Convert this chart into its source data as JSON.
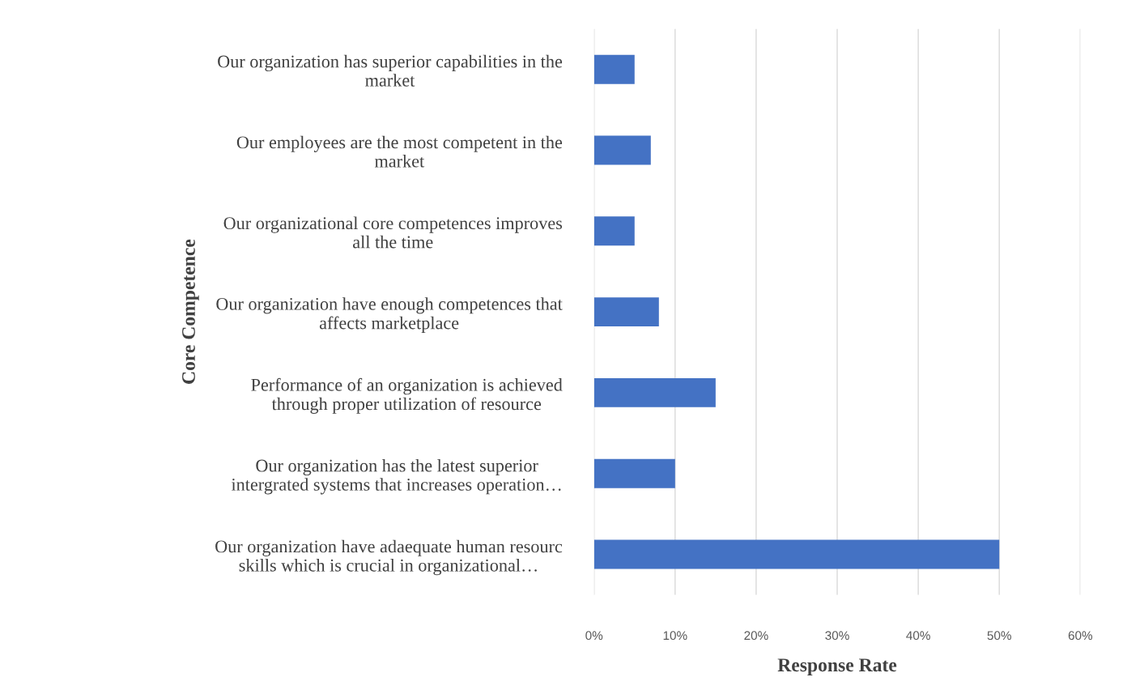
{
  "chart_data": {
    "type": "bar",
    "orientation": "horizontal",
    "xlabel": "Response Rate",
    "ylabel": "Core Competence",
    "categories": [
      "Our organization has superior capabilities in the\nmarket",
      "Our employees are the most competent in the\nmarket",
      "Our organizational core competences improves\nall the time",
      "Our organization have enough competences that\naffects marketplace",
      "Performance of an organization is achieved\nthrough proper utilization of resource",
      "Our organization has the latest superior\nintergrated systems that increases operation…",
      "Our organization have adaequate human resourc\nskills which is crucial in organizational…"
    ],
    "values": [
      5,
      7,
      5,
      8,
      15,
      10,
      50
    ],
    "color": "#4472c4",
    "xlim": [
      0,
      60
    ],
    "xticks": [
      {
        "value": 0,
        "label": "0%"
      },
      {
        "value": 10,
        "label": "10%"
      },
      {
        "value": 20,
        "label": "20%"
      },
      {
        "value": 30,
        "label": "30%"
      },
      {
        "value": 40,
        "label": "40%"
      },
      {
        "value": 50,
        "label": "50%"
      },
      {
        "value": 60,
        "label": "60%"
      }
    ],
    "grid": "x"
  }
}
